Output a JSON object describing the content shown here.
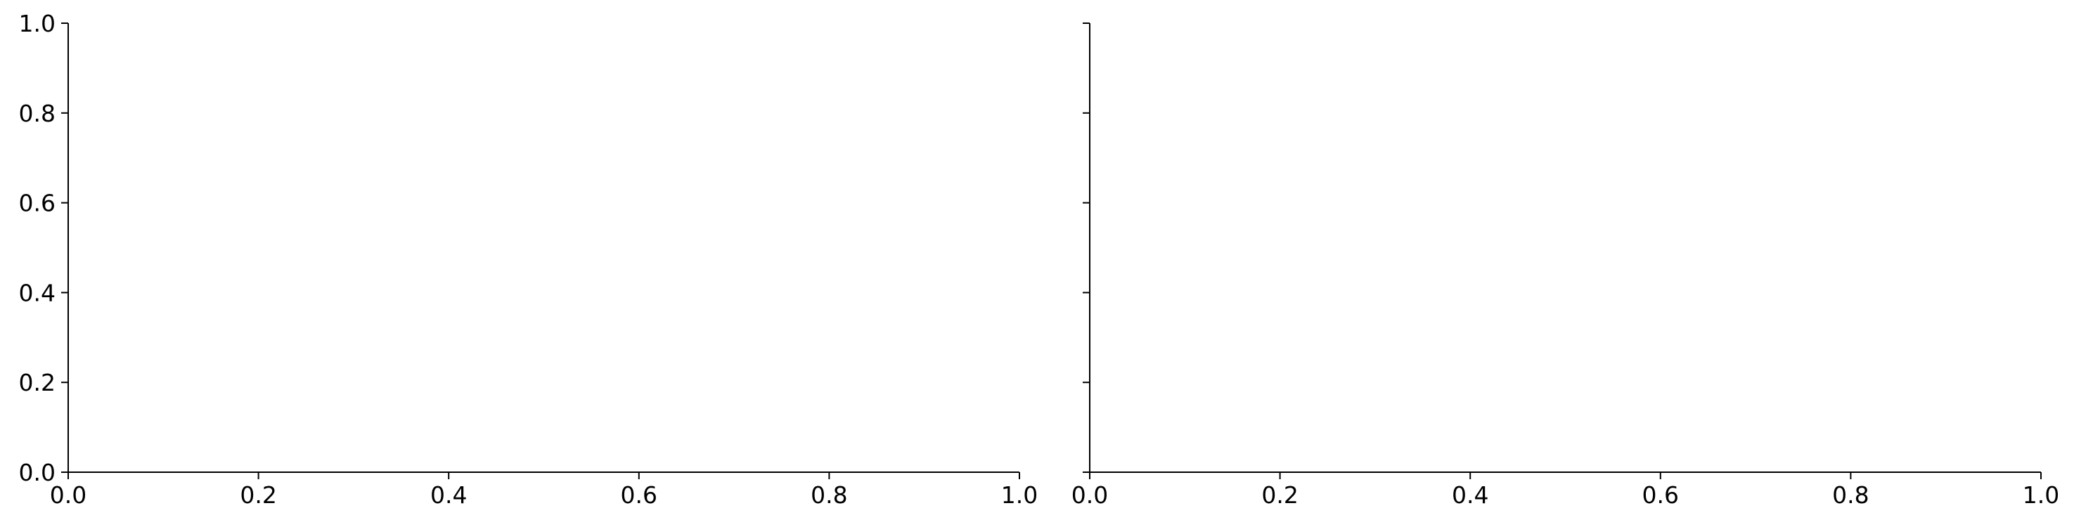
{
  "chart_data": [
    {
      "type": "scatter",
      "title": "",
      "xlabel": "",
      "ylabel": "",
      "xlim": [
        0.0,
        1.0
      ],
      "ylim": [
        0.0,
        1.0
      ],
      "x_ticks": [
        "0.0",
        "0.2",
        "0.4",
        "0.6",
        "0.8",
        "1.0"
      ],
      "y_ticks": [
        "0.0",
        "0.2",
        "0.4",
        "0.6",
        "0.8",
        "1.0"
      ],
      "y_tick_labels_visible": true,
      "grid": false,
      "legend": "none",
      "spines": [
        "left",
        "bottom"
      ],
      "series": []
    },
    {
      "type": "scatter",
      "title": "",
      "xlabel": "",
      "ylabel": "",
      "xlim": [
        0.0,
        1.0
      ],
      "ylim": [
        0.0,
        1.0
      ],
      "x_ticks": [
        "0.0",
        "0.2",
        "0.4",
        "0.6",
        "0.8",
        "1.0"
      ],
      "y_ticks": [
        "0.0",
        "0.2",
        "0.4",
        "0.6",
        "0.8",
        "1.0"
      ],
      "y_tick_labels_visible": false,
      "grid": false,
      "legend": "none",
      "spines": [
        "left",
        "bottom"
      ],
      "series": []
    }
  ],
  "colors": {
    "axis": "#000000",
    "background": "#ffffff"
  }
}
